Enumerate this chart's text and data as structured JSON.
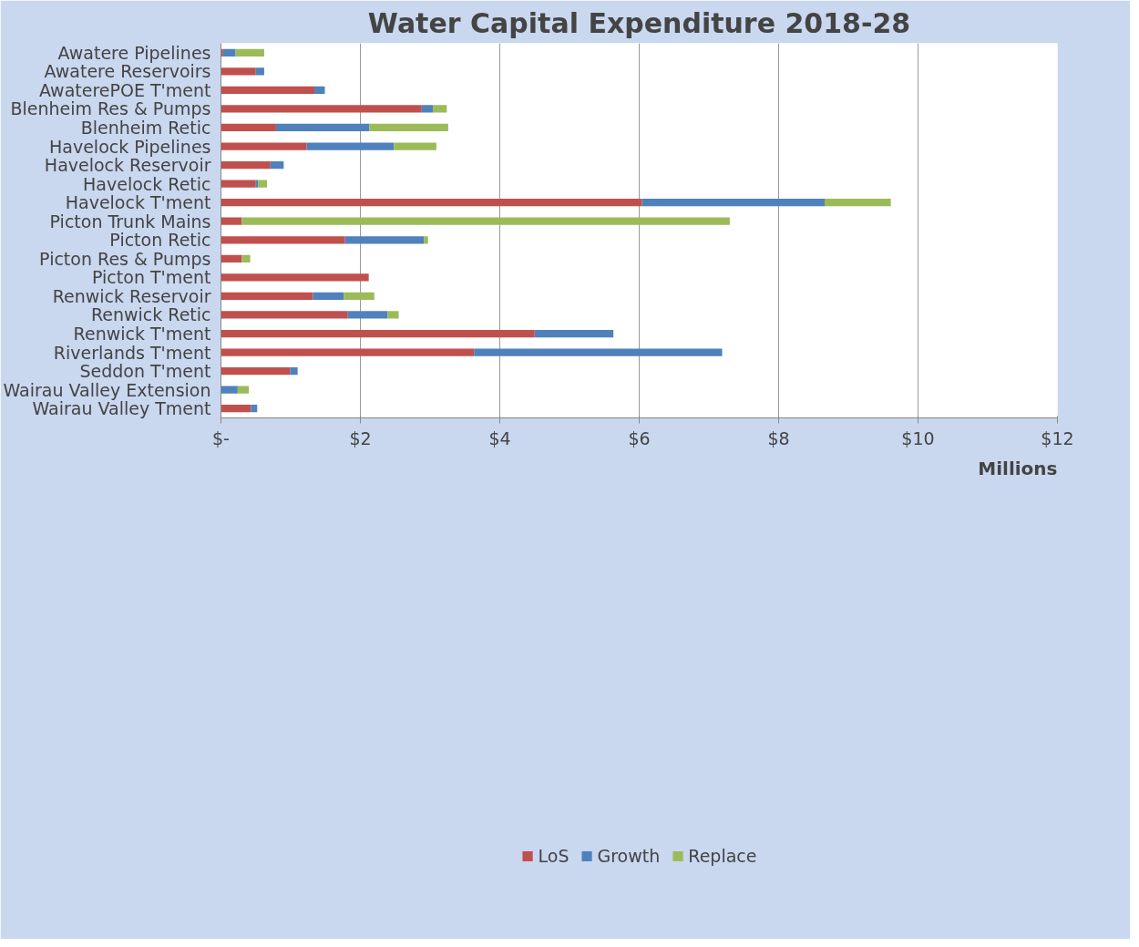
{
  "chart_data": {
    "type": "bar",
    "orientation": "horizontal",
    "stacked": true,
    "title": "Water Capital Expenditure 2018-28",
    "xlabel": "Millions",
    "categories": [
      "Awatere Pipelines",
      "Awatere Reservoirs",
      "AwaterePOE T'ment",
      "Blenheim Res & Pumps",
      "Blenheim Retic",
      "Havelock Pipelines",
      "Havelock Reservoir",
      "Havelock Retic",
      "Havelock T'ment",
      "Picton Trunk Mains",
      "Picton Retic",
      "Picton Res & Pumps",
      "Picton T'ment",
      "Renwick Reservoir",
      "Renwick Retic",
      "Renwick T'ment",
      "Riverlands T'ment",
      "Seddon T'ment",
      "Wairau Valley Extension",
      "Wairau Valley Tment"
    ],
    "series": [
      {
        "name": "LoS",
        "color": "#c0504d",
        "values": [
          0.03,
          0.5,
          1.34,
          2.88,
          0.79,
          1.23,
          0.71,
          0.5,
          6.04,
          0.3,
          1.78,
          0.3,
          2.12,
          1.32,
          1.82,
          4.5,
          3.63,
          0.99,
          0,
          0.43
        ]
      },
      {
        "name": "Growth",
        "color": "#4f81bd",
        "values": [
          0.18,
          0.12,
          0.15,
          0.16,
          1.34,
          1.25,
          0.19,
          0.03,
          2.62,
          0,
          1.13,
          0,
          0,
          0.44,
          0.57,
          1.13,
          3.56,
          0.11,
          0.24,
          0.09
        ]
      },
      {
        "name": "Replace",
        "color": "#9bbb59",
        "values": [
          0.41,
          0,
          0,
          0.2,
          1.13,
          0.61,
          0,
          0.13,
          0.95,
          7.0,
          0.06,
          0.12,
          0,
          0.44,
          0.16,
          0,
          0,
          0,
          0.16,
          0
        ]
      }
    ],
    "xlim": [
      0,
      12
    ],
    "xticks": [
      {
        "value": 0,
        "label": "$-"
      },
      {
        "value": 2,
        "label": "$2"
      },
      {
        "value": 4,
        "label": "$4"
      },
      {
        "value": 6,
        "label": "$6"
      },
      {
        "value": 8,
        "label": "$8"
      },
      {
        "value": 10,
        "label": "$10"
      },
      {
        "value": 12,
        "label": "$12"
      }
    ],
    "grid": "x",
    "legend": "bottom"
  }
}
